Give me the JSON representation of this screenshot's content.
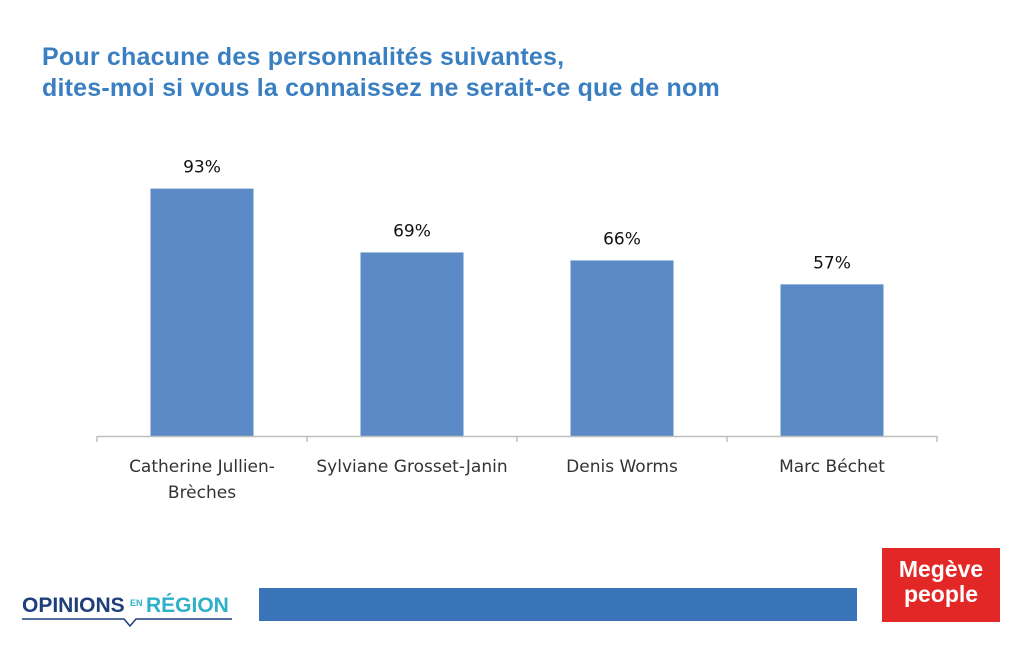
{
  "title_lines": [
    "Pour chacune des personnalités suivantes,",
    "dites-moi si vous la connaissez ne serait-ce que de nom"
  ],
  "chart_data": {
    "type": "bar",
    "categories": [
      [
        "Catherine Jullien-",
        "Brèches"
      ],
      [
        "Sylviane Grosset-Janin"
      ],
      [
        "Denis Worms"
      ],
      [
        "Marc Béchet"
      ]
    ],
    "values": [
      93,
      69,
      66,
      57
    ],
    "data_labels": [
      "93%",
      "69%",
      "66%",
      "57%"
    ],
    "ylim": [
      0,
      100
    ],
    "bar_color": "#5b8ac6",
    "axis_color": "#bfbfbf",
    "grid": false
  },
  "footer": {
    "left_logo_text": "OPINIONS",
    "left_logo_small": "EN",
    "left_logo_text2": "RÉGION",
    "right_logo_lines": [
      "Megève",
      "people"
    ],
    "colors": {
      "brand_blue": "#1f3f7a",
      "brand_teal": "#2fb0c9",
      "bar": "#3a74b8",
      "red": "#e32626"
    }
  }
}
